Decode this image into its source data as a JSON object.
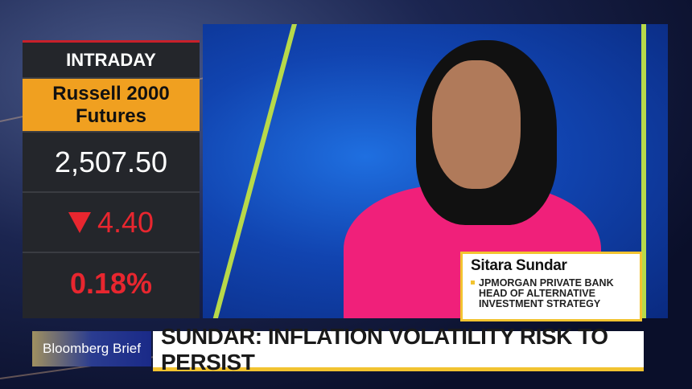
{
  "ticker": {
    "label": "INTRADAY",
    "index_line1": "Russell 2000",
    "index_line2": "Futures",
    "price": "2,507.50",
    "change": "4.40",
    "change_direction": "down",
    "change_icon": "triangle-down-icon",
    "percent": "0.18%"
  },
  "lower_third": {
    "name": "Sitara Sundar",
    "title_line1": "JPMORGAN PRIVATE BANK",
    "title_line2": "HEAD OF ALTERNATIVE",
    "title_line3": "INVESTMENT STRATEGY"
  },
  "banner": {
    "brand": "Bloomberg Brief",
    "headline": "SUNDAR: INFLATION VOLATILITY RISK TO PERSIST"
  },
  "colors": {
    "accent_orange": "#f0a020",
    "negative_red": "#e8262f",
    "accent_yellow": "#f2c330",
    "panel": "#24262b"
  }
}
